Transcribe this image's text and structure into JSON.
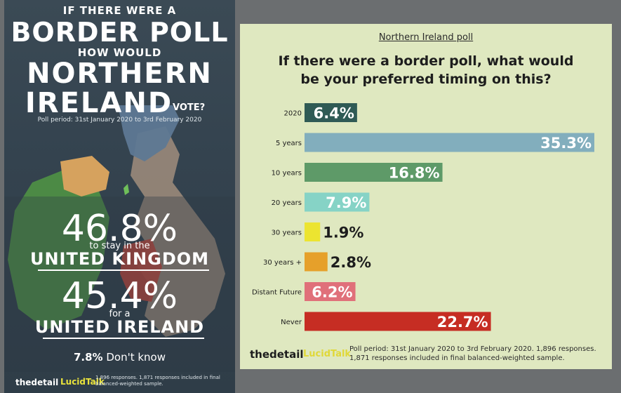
{
  "poster": {
    "line1": "IF THERE WERE A",
    "line2": "BORDER POLL",
    "line3": "HOW WOULD",
    "line4": "NORTHERN",
    "line5": "IRELAND",
    "line6": "VOTE?",
    "period": "Poll period: 31st January 2020 to 3rd February 2020",
    "uk_pct": "46.8%",
    "uk_sub": "to stay in the",
    "uk_name": "UNITED KINGDOM",
    "ui_pct": "45.4%",
    "ui_sub": "for a",
    "ui_name": "UNITED IRELAND",
    "dk_pct": "7.8%",
    "dk_label": "Don't know",
    "brand_detail": "thedetail",
    "brand_lucid": "LucidTalk",
    "footnote": "1,896 responses. 1,871 responses included in final balanced-weighted sample."
  },
  "brand": {
    "detail": "thedetail",
    "lucid": "LucidTalk"
  },
  "notes": {
    "line1": "Poll period: 31st January 2020 to 3rd February 2020. 1,896 responses.",
    "line2": "1,871 responses included in final balanced-weighted sample."
  },
  "colors": {
    "panel_bg": "#dfe8c0",
    "poster_bg": "#34434f"
  },
  "chart_data": {
    "type": "bar",
    "orientation": "horizontal",
    "subtitle": "Northern Ireland poll",
    "title_line1": "If there were a border poll, what would",
    "title_line2": "be your preferred timing on this?",
    "xlim": [
      0,
      35.3
    ],
    "grid": false,
    "legend": "none",
    "categories": [
      "2020",
      "5 years",
      "10 years",
      "20 years",
      "30 years",
      "30 years +",
      "Distant Future",
      "Never"
    ],
    "values": [
      6.4,
      35.3,
      16.8,
      7.9,
      1.9,
      2.8,
      6.2,
      22.7
    ],
    "value_labels": [
      "6.4%",
      "35.3%",
      "16.8%",
      "7.9%",
      "1.9%",
      "2.8%",
      "6.2%",
      "22.7%"
    ],
    "colors": [
      "#2f5a55",
      "#82aebd",
      "#5e9a68",
      "#86d3c6",
      "#ece430",
      "#e6a02a",
      "#e0707a",
      "#c62d23"
    ],
    "label_inside": [
      true,
      true,
      true,
      true,
      false,
      false,
      true,
      true
    ],
    "label_color": [
      "#ffffff",
      "#ffffff",
      "#ffffff",
      "#ffffff",
      "#1d1d1d",
      "#1d1d1d",
      "#ffffff",
      "#ffffff"
    ]
  }
}
